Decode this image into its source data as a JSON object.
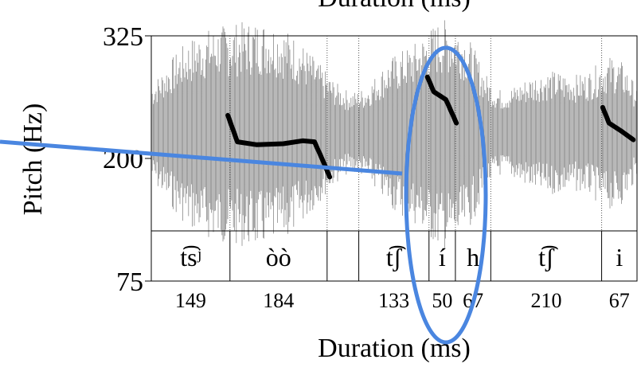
{
  "chart_data": {
    "type": "pitch-track",
    "title": "Duration (ms)",
    "y_label": "Pitch (Hz)",
    "x_label": "Duration (ms)",
    "ylim": [
      75,
      325
    ],
    "yticks": [
      75,
      200,
      325
    ],
    "xlim": [
      0,
      920
    ],
    "segments": {
      "labels": [
        "t͡sʲ",
        "òò",
        null,
        "t͡ʃ",
        "í",
        "h",
        "t͡ʃ",
        "i"
      ],
      "durations": [
        149,
        184,
        null,
        133,
        50,
        67,
        210,
        67
      ],
      "bounds": [
        0,
        149,
        333,
        393,
        526,
        576,
        643,
        853,
        920
      ]
    },
    "series": [
      {
        "name": "pitch",
        "color": "#000000",
        "x": [
          145,
          163,
          200,
          250,
          287,
          309,
          324,
          338,
          null,
          523,
          535,
          558,
          578,
          null,
          855,
          867,
          890,
          913
        ],
        "values": [
          244,
          217,
          214,
          215,
          218,
          217,
          199,
          181,
          null,
          283,
          268,
          260,
          236,
          null,
          252,
          236,
          228,
          219
        ]
      }
    ]
  }
}
